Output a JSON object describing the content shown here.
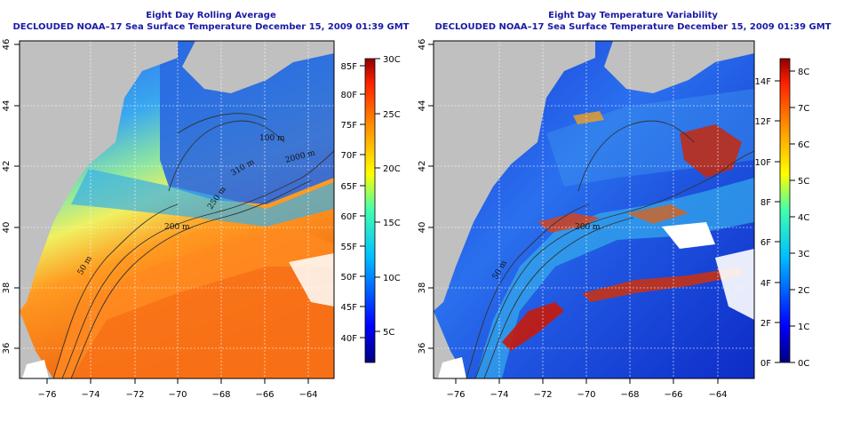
{
  "left": {
    "title_line1": "Eight Day Rolling Average",
    "title_line2": "DECLOUDED NOAA–17 Sea Surface Temperature December 15, 2009 01:39 GMT",
    "x_ticks": [
      "−76",
      "−74",
      "−72",
      "−70",
      "−68",
      "−66",
      "−64"
    ],
    "y_ticks": [
      "36",
      "38",
      "40",
      "42",
      "44",
      "46"
    ],
    "colorbar_f": [
      "85F",
      "80F",
      "75F",
      "70F",
      "65F",
      "60F",
      "55F",
      "50F",
      "45F",
      "40F"
    ],
    "colorbar_c": [
      "30C",
      "25C",
      "20C",
      "15C",
      "10C",
      "5C"
    ],
    "contours": [
      "50 m",
      "200 m",
      "250 m",
      "310 m",
      "2000 m",
      "100 m"
    ]
  },
  "right": {
    "title_line1": "Eight Day Temperature Variability",
    "title_line2": "DECLOUDED NOAA–17 Sea Surface Temperature December 15, 2009 01:39 GMT",
    "x_ticks": [
      "−76",
      "−74",
      "−72",
      "−70",
      "−68",
      "−66",
      "−64"
    ],
    "y_ticks": [
      "36",
      "38",
      "40",
      "42",
      "44",
      "46"
    ],
    "colorbar_f": [
      "14F",
      "12F",
      "10F",
      "8F",
      "6F",
      "4F",
      "2F",
      "0F"
    ],
    "colorbar_c": [
      "8C",
      "7C",
      "6C",
      "5C",
      "4C",
      "3C",
      "2C",
      "1C",
      "0C"
    ],
    "contours": [
      "50 m",
      "200 m"
    ]
  },
  "colors": {
    "title": "#1a1aa6",
    "land": "#c0c0c0",
    "deep_blue": "#0a0ab0",
    "warm_red": "#c81a0a"
  }
}
